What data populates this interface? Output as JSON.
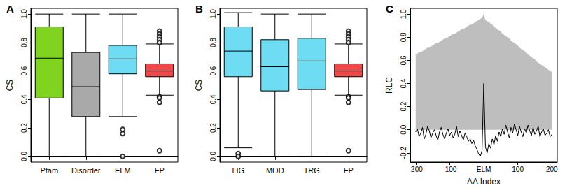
{
  "chart_data": [
    {
      "type": "boxplot",
      "title": "A",
      "ylabel": "CS",
      "categories": [
        "Pfam",
        "Disorder",
        "ELM",
        "FP"
      ],
      "values": [
        [
          0.0,
          0.41,
          0.69,
          0.91,
          1.0
        ],
        [
          0.0,
          0.28,
          0.49,
          0.73,
          1.0
        ],
        [
          0.28,
          0.58,
          0.685,
          0.78,
          1.0
        ],
        [
          0.43,
          0.56,
          0.6,
          0.65,
          0.79
        ]
      ],
      "outliers": [
        [],
        [],
        [
          0.19,
          0.16,
          0.0
        ],
        [
          0.88,
          0.86,
          0.84,
          0.82,
          0.8,
          0.42,
          0.41,
          0.38,
          0.04
        ]
      ],
      "colors": [
        "#80d41f",
        "#a9a9a9",
        "#6edcf2",
        "#f04848"
      ],
      "ylim": [
        -0.04,
        1.04
      ],
      "yticks": [
        {
          "value": 0,
          "label": "0.0"
        },
        0.2,
        0.4,
        0.6,
        0.8,
        {
          "value": 1,
          "label": "1.0"
        }
      ]
    },
    {
      "type": "boxplot",
      "title": "B",
      "ylabel": "CS",
      "categories": [
        "LIG",
        "MOD",
        "TRG",
        "FP"
      ],
      "values": [
        [
          0.06,
          0.56,
          0.74,
          0.91,
          1.01
        ],
        [
          0.0,
          0.46,
          0.63,
          0.82,
          1.0
        ],
        [
          0.0,
          0.47,
          0.67,
          0.83,
          1.0
        ],
        [
          0.43,
          0.56,
          0.6,
          0.65,
          0.79
        ]
      ],
      "outliers": [
        [
          0.02,
          0.0
        ],
        [],
        [],
        [
          0.88,
          0.86,
          0.84,
          0.82,
          0.8,
          0.42,
          0.41,
          0.38,
          0.04
        ]
      ],
      "colors": [
        "#6edcf2",
        "#6edcf2",
        "#6edcf2",
        "#f04848"
      ],
      "ylim": [
        -0.04,
        1.04
      ],
      "yticks": [
        {
          "value": 0,
          "label": "0.0"
        },
        0.2,
        0.4,
        0.6,
        0.8,
        {
          "value": 1,
          "label": "1.0"
        }
      ]
    },
    {
      "type": "line",
      "title": "C",
      "xlabel": "AA Index",
      "ylabel": "RLC",
      "x": [
        -200,
        -195,
        -190,
        -185,
        -180,
        -175,
        -170,
        -165,
        -160,
        -155,
        -150,
        -145,
        -140,
        -135,
        -130,
        -125,
        -120,
        -115,
        -110,
        -105,
        -100,
        -95,
        -90,
        -85,
        -80,
        -75,
        -70,
        -65,
        -60,
        -55,
        -50,
        -45,
        -40,
        -35,
        -30,
        -25,
        -20,
        -15,
        -10,
        -5,
        0,
        5,
        10,
        15,
        20,
        25,
        30,
        35,
        40,
        45,
        50,
        55,
        60,
        65,
        70,
        75,
        80,
        85,
        90,
        95,
        100,
        105,
        110,
        115,
        120,
        125,
        130,
        135,
        140,
        145,
        150,
        155,
        160,
        165,
        170,
        175,
        180,
        185,
        190,
        195,
        200
      ],
      "series": [
        {
          "type": "area",
          "color": "#bebebe",
          "values": [
            0.65,
            0.66,
            0.67,
            0.67,
            0.68,
            0.69,
            0.7,
            0.71,
            0.71,
            0.72,
            0.73,
            0.74,
            0.75,
            0.75,
            0.76,
            0.77,
            0.78,
            0.79,
            0.79,
            0.8,
            0.81,
            0.82,
            0.83,
            0.83,
            0.84,
            0.85,
            0.86,
            0.87,
            0.87,
            0.88,
            0.89,
            0.9,
            0.91,
            0.91,
            0.92,
            0.93,
            0.94,
            0.95,
            0.96,
            0.97,
            1.0,
            0.95,
            0.94,
            0.93,
            0.92,
            0.91,
            0.89,
            0.88,
            0.87,
            0.86,
            0.85,
            0.83,
            0.82,
            0.81,
            0.8,
            0.79,
            0.77,
            0.76,
            0.75,
            0.74,
            0.73,
            0.71,
            0.7,
            0.69,
            0.68,
            0.67,
            0.65,
            0.64,
            0.63,
            0.62,
            0.61,
            0.59,
            0.58,
            0.57,
            0.56,
            0.55,
            0.54,
            0.53,
            0.52,
            0.51,
            0.5
          ]
        },
        {
          "type": "line",
          "color": "#000000",
          "values": [
            -0.02,
            0.01,
            -0.06,
            -0.03,
            0.02,
            -0.08,
            -0.04,
            0.03,
            -0.01,
            -0.07,
            -0.03,
            0.0,
            -0.05,
            -0.09,
            -0.02,
            0.02,
            -0.04,
            -0.08,
            -0.03,
            0.01,
            -0.05,
            -0.02,
            -0.07,
            -0.04,
            0.03,
            -0.06,
            -0.01,
            -0.05,
            -0.09,
            -0.03,
            -0.06,
            -0.1,
            -0.08,
            -0.12,
            -0.09,
            -0.14,
            -0.17,
            -0.21,
            -0.23,
            -0.18,
            0.4,
            -0.15,
            -0.2,
            -0.12,
            -0.16,
            -0.08,
            -0.13,
            -0.05,
            -0.1,
            -0.02,
            -0.06,
            0.01,
            -0.04,
            0.04,
            -0.02,
            -0.07,
            0.02,
            -0.03,
            0.05,
            0.0,
            -0.05,
            0.03,
            -0.02,
            -0.06,
            0.01,
            -0.03,
            0.04,
            -0.01,
            -0.05,
            0.02,
            -0.04,
            -0.01,
            0.03,
            -0.06,
            -0.02,
            0.01,
            -0.05,
            -0.03,
            0.0,
            -0.06,
            -0.04
          ]
        }
      ],
      "xlim": [
        -216,
        216
      ],
      "xticks": [
        -200,
        -100,
        {
          "value": 0,
          "label": "ELM"
        },
        100,
        200
      ],
      "ylim": [
        -0.28,
        1.05
      ],
      "yticks": [
        -0.2,
        {
          "value": 0,
          "label": "0.0"
        },
        0.2,
        0.4,
        0.6,
        0.8,
        {
          "value": 1,
          "label": "1.0"
        }
      ]
    }
  ]
}
